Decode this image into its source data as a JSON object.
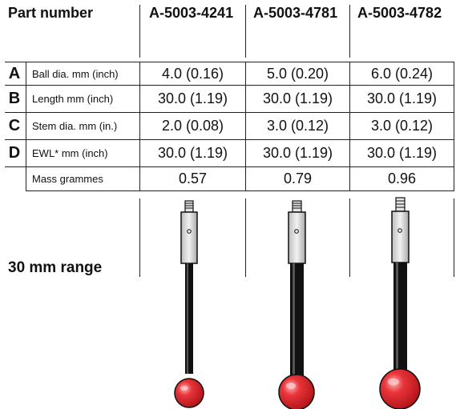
{
  "header": {
    "part_number_label": "Part number",
    "columns": [
      "A-5003-4241",
      "A-5003-4781",
      "A-5003-4782"
    ]
  },
  "rows": [
    {
      "letter": "A",
      "label": "Ball dia. mm (inch)",
      "values": [
        "4.0 (0.16)",
        "5.0 (0.20)",
        "6.0 (0.24)"
      ]
    },
    {
      "letter": "B",
      "label": "Length mm (inch)",
      "values": [
        "30.0 (1.19)",
        "30.0 (1.19)",
        "30.0 (1.19)"
      ]
    },
    {
      "letter": "C",
      "label": "Stem dia. mm (in.)",
      "values": [
        "2.0 (0.08)",
        "3.0 (0.12)",
        "3.0 (0.12)"
      ]
    },
    {
      "letter": "D",
      "label": "EWL* mm (inch)",
      "values": [
        "30.0 (1.19)",
        "30.0 (1.19)",
        "30.0 (1.19)"
      ]
    },
    {
      "letter": "",
      "label": "Mass grammes",
      "values": [
        "0.57",
        "0.79",
        "0.96"
      ]
    }
  ],
  "range_label": "30 mm range",
  "colors": {
    "ball": "#e0282e",
    "ball_highlight": "#ff9a9a",
    "stem": "#111111",
    "body": "#d8d8d8"
  }
}
